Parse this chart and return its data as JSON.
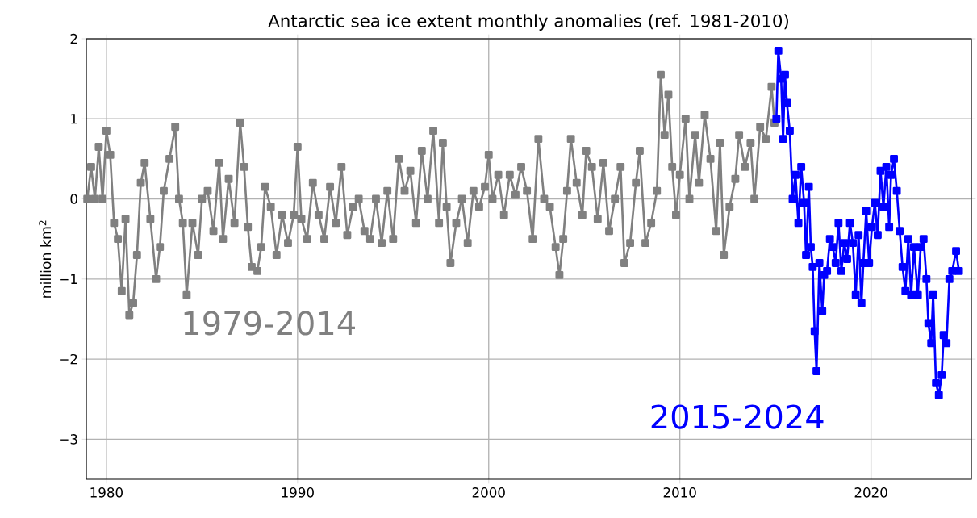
{
  "chart_data": {
    "type": "line",
    "title": "Antarctic sea ice extent monthly anomalies (ref. 1981-2010)",
    "ylabel": "million km$^{2}$",
    "marker": "square",
    "grid": true,
    "xlim": [
      1978.95,
      2025.25
    ],
    "xticks": [
      1980,
      1990,
      2000,
      2010,
      2020
    ],
    "ylim": [
      -3.5,
      2
    ],
    "yticks": [
      {
        "value": -3,
        "label": "−3"
      },
      {
        "value": -2,
        "label": "−2"
      },
      {
        "value": -1,
        "label": "−1"
      },
      0,
      1,
      2
    ],
    "series": [
      {
        "name": "1979-2014",
        "color": "#808080",
        "x": [
          1979.0,
          1979.2,
          1979.4,
          1979.6,
          1979.8,
          1980.0,
          1980.2,
          1980.4,
          1980.6,
          1980.8,
          1981.0,
          1981.2,
          1981.4,
          1981.6,
          1981.8,
          1982.0,
          1982.3,
          1982.6,
          1982.8,
          1983.0,
          1983.3,
          1983.6,
          1983.8,
          1984.0,
          1984.2,
          1984.5,
          1984.8,
          1985.0,
          1985.3,
          1985.6,
          1985.9,
          1986.1,
          1986.4,
          1986.7,
          1987.0,
          1987.2,
          1987.4,
          1987.6,
          1987.9,
          1988.1,
          1988.3,
          1988.6,
          1988.9,
          1989.2,
          1989.5,
          1989.8,
          1990.0,
          1990.2,
          1990.5,
          1990.8,
          1991.1,
          1991.4,
          1991.7,
          1992.0,
          1992.3,
          1992.6,
          1992.9,
          1993.2,
          1993.5,
          1993.8,
          1994.1,
          1994.4,
          1994.7,
          1995.0,
          1995.3,
          1995.6,
          1995.9,
          1996.2,
          1996.5,
          1996.8,
          1997.1,
          1997.4,
          1997.6,
          1997.8,
          1998.0,
          1998.3,
          1998.6,
          1998.9,
          1999.2,
          1999.5,
          1999.8,
          2000.0,
          2000.2,
          2000.5,
          2000.8,
          2001.1,
          2001.4,
          2001.7,
          2002.0,
          2002.3,
          2002.6,
          2002.9,
          2003.2,
          2003.5,
          2003.7,
          2003.9,
          2004.1,
          2004.3,
          2004.6,
          2004.9,
          2005.1,
          2005.4,
          2005.7,
          2006.0,
          2006.3,
          2006.6,
          2006.9,
          2007.1,
          2007.4,
          2007.7,
          2007.9,
          2008.2,
          2008.5,
          2008.8,
          2009.0,
          2009.2,
          2009.4,
          2009.6,
          2009.8,
          2010.0,
          2010.3,
          2010.5,
          2010.8,
          2011.0,
          2011.3,
          2011.6,
          2011.9,
          2012.1,
          2012.3,
          2012.6,
          2012.9,
          2013.1,
          2013.4,
          2013.7,
          2013.9,
          2014.2,
          2014.5,
          2014.8,
          2014.95
        ],
        "values": [
          0.0,
          0.4,
          0.0,
          0.65,
          0.0,
          0.85,
          0.55,
          -0.3,
          -0.5,
          -1.15,
          -0.25,
          -1.45,
          -1.3,
          -0.7,
          0.2,
          0.45,
          -0.25,
          -1.0,
          -0.6,
          0.1,
          0.5,
          0.9,
          0.0,
          -0.3,
          -1.2,
          -0.3,
          -0.7,
          0.0,
          0.1,
          -0.4,
          0.45,
          -0.5,
          0.25,
          -0.3,
          0.95,
          0.4,
          -0.35,
          -0.85,
          -0.9,
          -0.6,
          0.15,
          -0.1,
          -0.7,
          -0.2,
          -0.55,
          -0.2,
          0.65,
          -0.25,
          -0.5,
          0.2,
          -0.2,
          -0.5,
          0.15,
          -0.3,
          0.4,
          -0.45,
          -0.1,
          0.0,
          -0.4,
          -0.5,
          0.0,
          -0.55,
          0.1,
          -0.5,
          0.5,
          0.1,
          0.35,
          -0.3,
          0.6,
          0.0,
          0.85,
          -0.3,
          0.7,
          -0.1,
          -0.8,
          -0.3,
          0.0,
          -0.55,
          0.1,
          -0.1,
          0.15,
          0.55,
          0.0,
          0.3,
          -0.2,
          0.3,
          0.05,
          0.4,
          0.1,
          -0.5,
          0.75,
          0.0,
          -0.1,
          -0.6,
          -0.95,
          -0.5,
          0.1,
          0.75,
          0.2,
          -0.2,
          0.6,
          0.4,
          -0.25,
          0.45,
          -0.4,
          0.0,
          0.4,
          -0.8,
          -0.55,
          0.2,
          0.6,
          -0.55,
          -0.3,
          0.1,
          1.55,
          0.8,
          1.3,
          0.4,
          -0.2,
          0.3,
          1.0,
          0.0,
          0.8,
          0.2,
          1.05,
          0.5,
          -0.4,
          0.7,
          -0.7,
          -0.1,
          0.25,
          0.8,
          0.4,
          0.7,
          0.0,
          0.9,
          0.75,
          1.4,
          0.95
        ]
      },
      {
        "name": "2015-2024",
        "color": "#0000ff",
        "x": [
          2015.05,
          2015.15,
          2015.3,
          2015.4,
          2015.5,
          2015.6,
          2015.75,
          2015.9,
          2016.05,
          2016.2,
          2016.35,
          2016.5,
          2016.6,
          2016.75,
          2016.85,
          2016.95,
          2017.05,
          2017.15,
          2017.3,
          2017.45,
          2017.55,
          2017.7,
          2017.85,
          2018.0,
          2018.15,
          2018.3,
          2018.45,
          2018.6,
          2018.75,
          2018.9,
          2019.05,
          2019.2,
          2019.35,
          2019.5,
          2019.6,
          2019.75,
          2019.9,
          2020.05,
          2020.2,
          2020.35,
          2020.5,
          2020.65,
          2020.8,
          2020.95,
          2021.05,
          2021.2,
          2021.35,
          2021.5,
          2021.65,
          2021.8,
          2021.95,
          2022.1,
          2022.25,
          2022.45,
          2022.6,
          2022.75,
          2022.9,
          2023.0,
          2023.15,
          2023.25,
          2023.4,
          2023.55,
          2023.7,
          2023.8,
          2023.95,
          2024.1,
          2024.25,
          2024.45,
          2024.6
        ],
        "values": [
          1.0,
          1.85,
          1.5,
          0.75,
          1.55,
          1.2,
          0.85,
          0.0,
          0.3,
          -0.3,
          0.4,
          -0.05,
          -0.7,
          0.15,
          -0.6,
          -0.85,
          -1.65,
          -2.15,
          -0.8,
          -1.4,
          -0.95,
          -0.9,
          -0.5,
          -0.6,
          -0.8,
          -0.3,
          -0.9,
          -0.55,
          -0.75,
          -0.3,
          -0.55,
          -1.2,
          -0.45,
          -1.3,
          -0.8,
          -0.15,
          -0.8,
          -0.35,
          -0.05,
          -0.45,
          0.35,
          -0.1,
          0.4,
          -0.35,
          0.3,
          0.5,
          0.1,
          -0.4,
          -0.85,
          -1.15,
          -0.5,
          -1.2,
          -0.6,
          -1.2,
          -0.6,
          -0.5,
          -1.0,
          -1.55,
          -1.8,
          -1.2,
          -2.3,
          -2.45,
          -2.2,
          -1.7,
          -1.8,
          -1.0,
          -0.9,
          -0.65,
          -0.9
        ]
      }
    ]
  }
}
